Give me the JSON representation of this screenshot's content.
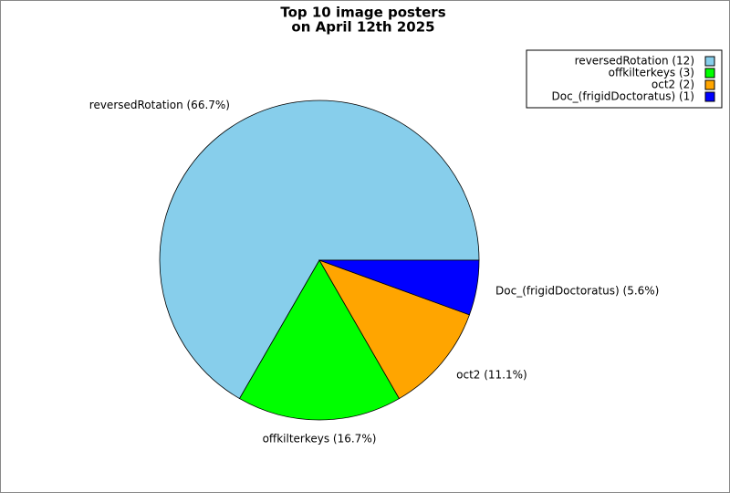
{
  "chart_data": {
    "type": "pie",
    "title": [
      "Top 10 image posters",
      "on April 12th 2025"
    ],
    "values": [
      12,
      3,
      2,
      1
    ],
    "colors": [
      "#87ceeb",
      "#00ff00",
      "#ffa500",
      "#0000ff"
    ],
    "slice_labels": [
      "reversedRotation (66.7%)",
      "offkilterkeys (16.7%)",
      "oct2 (11.1%)",
      "Doc_(frigidDoctoratus) (5.6%)"
    ],
    "legend_labels": [
      "reversedRotation (12)",
      "offkilterkeys (3)",
      "oct2 (2)",
      "Doc_(frigidDoctoratus) (1)"
    ],
    "legend": "upper right",
    "start_angle": 0,
    "direction": "counterclockwise"
  }
}
